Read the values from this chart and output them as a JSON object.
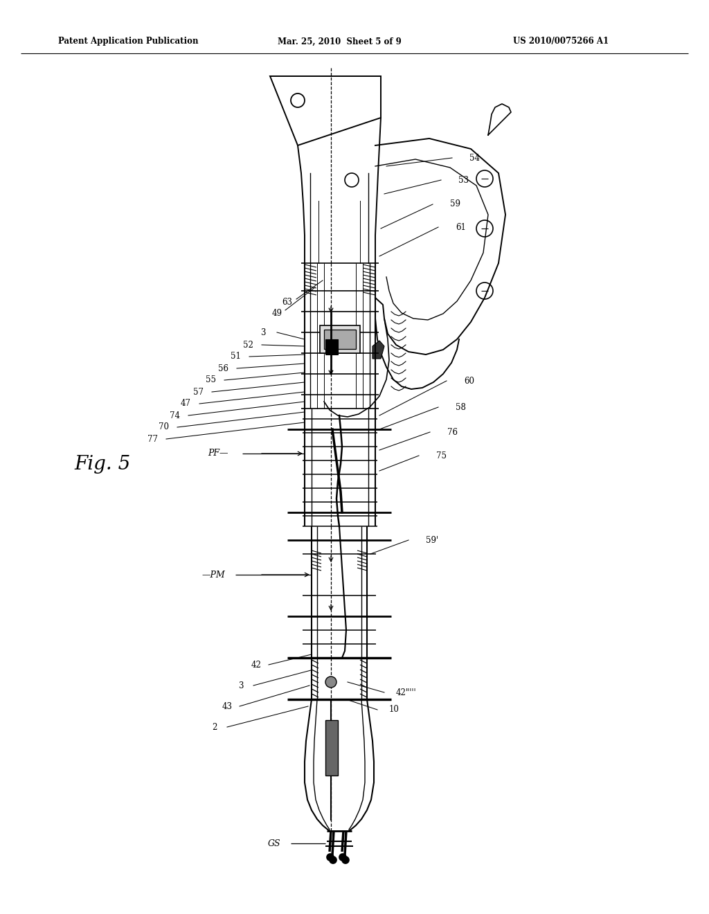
{
  "background_color": "#ffffff",
  "header_left": "Patent Application Publication",
  "header_center": "Mar. 25, 2010  Sheet 5 of 9",
  "header_right": "US 2010/0075266 A1",
  "figure_label": "Fig. 5",
  "line_color": "#000000",
  "lw_thick": 1.5,
  "lw_med": 1.0,
  "lw_thin": 0.7
}
